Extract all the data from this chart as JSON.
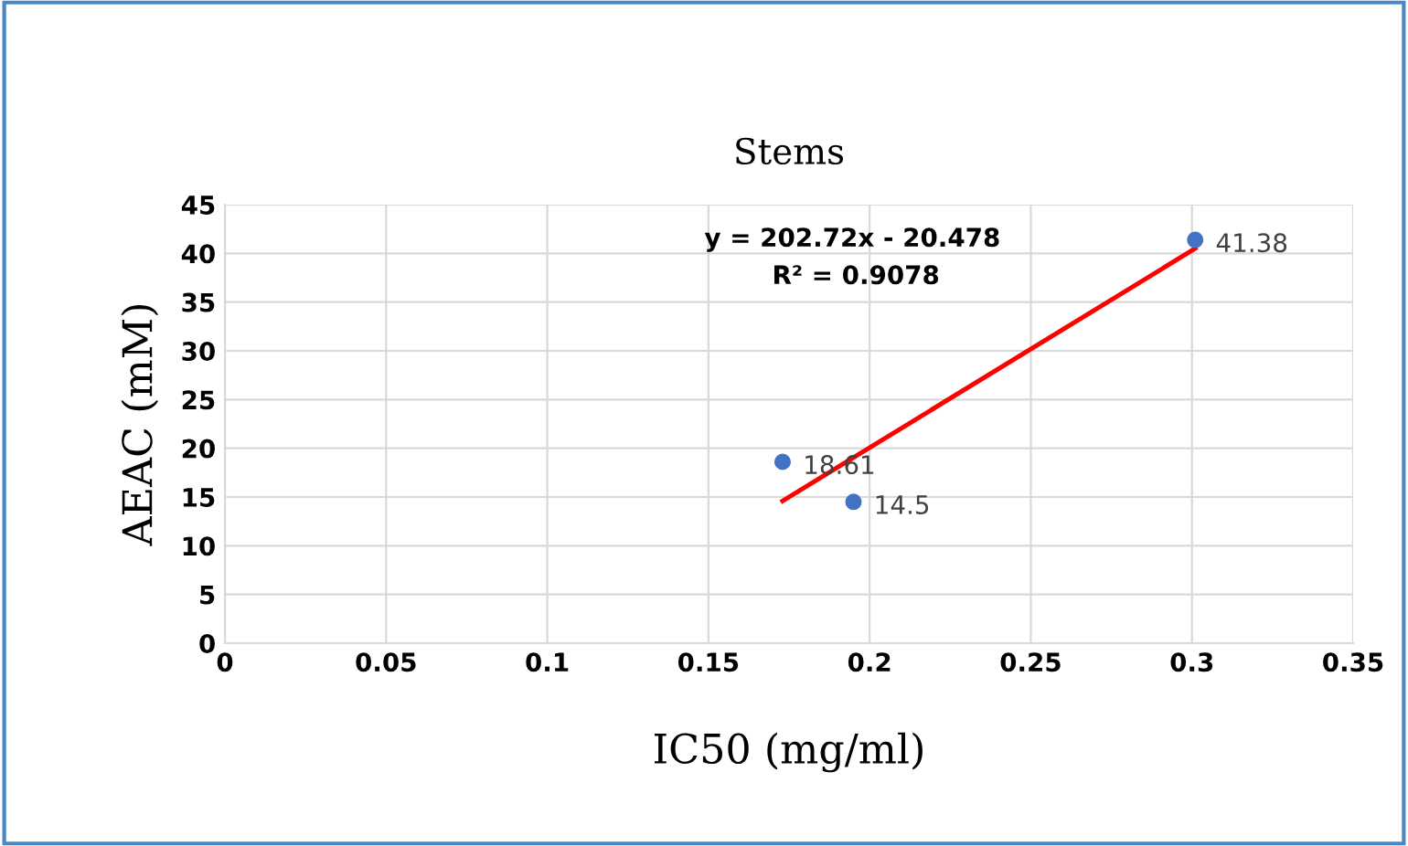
{
  "chart_data": {
    "type": "scatter",
    "title": "Stems",
    "xlabel": "IC50 (mg/ml)",
    "ylabel": "AEAC (mM)",
    "xlim": [
      0,
      0.35
    ],
    "xticks": [
      0,
      0.05,
      0.1,
      0.15,
      0.2,
      0.25,
      0.3,
      0.35
    ],
    "ylim": [
      0,
      45
    ],
    "yticks": [
      0,
      5,
      10,
      15,
      20,
      25,
      30,
      35,
      40,
      45
    ],
    "grid": true,
    "legend": false,
    "series": [
      {
        "marker": "circle",
        "color": "#4472c4",
        "x": [
          0.173,
          0.195,
          0.301
        ],
        "values": [
          18.61,
          14.5,
          41.38
        ],
        "value_labels": [
          "18.61",
          "14.5",
          "41.38"
        ]
      },
      {
        "type": "line",
        "color": "#ff0000",
        "x": [
          0.173,
          0.301
        ],
        "values": [
          14.6,
          40.5
        ],
        "line_style": "solid",
        "marker": "none"
      }
    ],
    "annotations": [
      "y = 202.72x - 20.478",
      "R² = 0.9078"
    ]
  }
}
